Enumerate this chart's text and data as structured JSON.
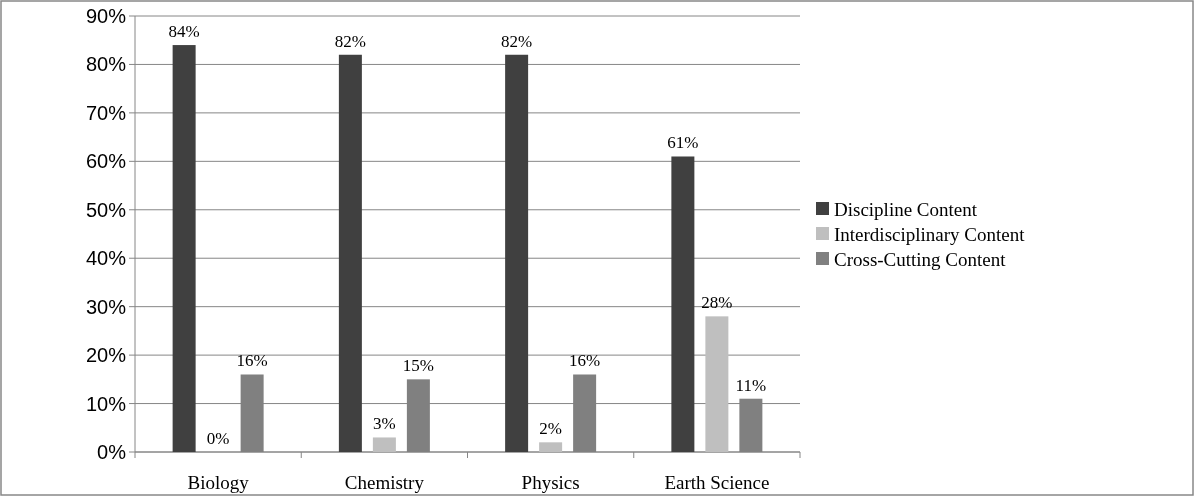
{
  "chart_data": {
    "type": "bar",
    "categories": [
      "Biology",
      "Chemistry",
      "Physics",
      "Earth Science"
    ],
    "series": [
      {
        "name": "Discipline Content",
        "color": "#404040",
        "values": [
          84,
          82,
          82,
          61
        ],
        "value_labels": [
          "84%",
          "82%",
          "82%",
          "61%"
        ]
      },
      {
        "name": "Interdisciplinary Content",
        "color": "#bfbfbf",
        "values": [
          0,
          3,
          2,
          28
        ],
        "value_labels": [
          "0%",
          "3%",
          "2%",
          "28%"
        ]
      },
      {
        "name": "Cross-Cutting Content",
        "color": "#808080",
        "values": [
          16,
          15,
          16,
          11
        ],
        "value_labels": [
          "16%",
          "15%",
          "16%",
          "11%"
        ]
      }
    ],
    "ylim": [
      0,
      90
    ],
    "yticks": [
      {
        "value": 0,
        "label": "0%"
      },
      {
        "value": 10,
        "label": "10%"
      },
      {
        "value": 20,
        "label": "20%"
      },
      {
        "value": 30,
        "label": "30%"
      },
      {
        "value": 40,
        "label": "40%"
      },
      {
        "value": 50,
        "label": "50%"
      },
      {
        "value": 60,
        "label": "60%"
      },
      {
        "value": 70,
        "label": "70%"
      },
      {
        "value": 80,
        "label": "80%"
      },
      {
        "value": 90,
        "label": "90%"
      }
    ],
    "grid": "y",
    "legend": "right"
  }
}
